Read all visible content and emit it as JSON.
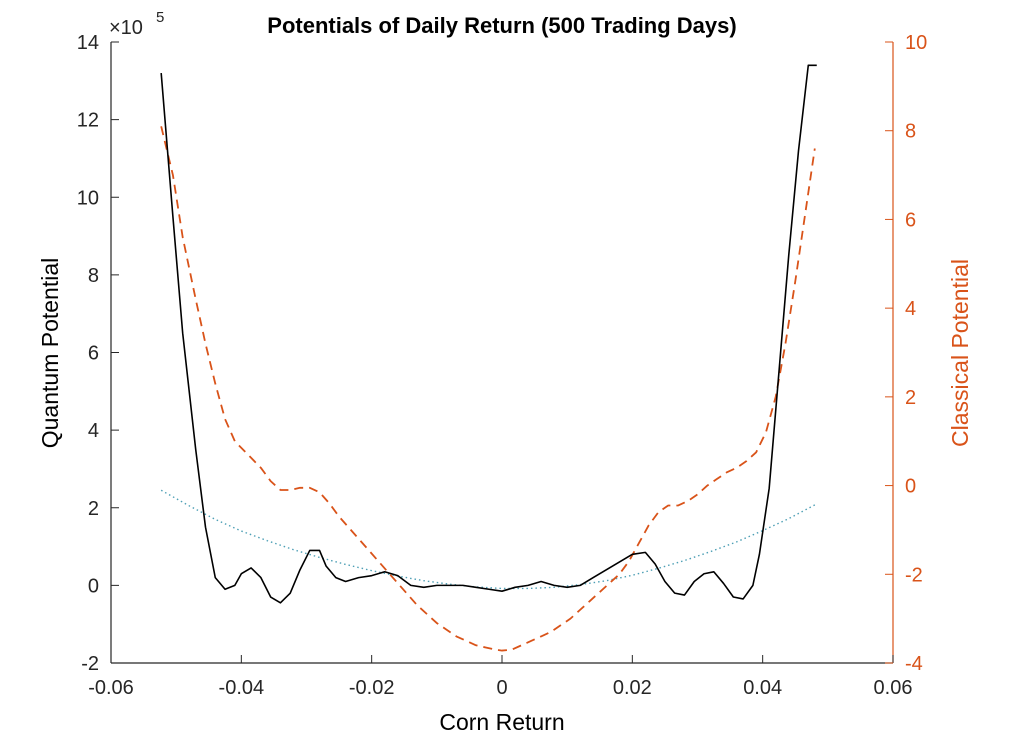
{
  "chart_data": {
    "type": "line",
    "title": "Potentials of Daily Return (500 Trading Days)",
    "xlabel": "Corn Return",
    "ylabel_left": "Quantum Potential",
    "ylabel_right": "Classical Potential",
    "exponent_label": "×10",
    "exponent_power": "5",
    "xlim": [
      -0.06,
      0.06
    ],
    "ylim_left": [
      -2,
      14
    ],
    "ylim_right": [
      -4,
      10
    ],
    "xticks": [
      -0.06,
      -0.04,
      -0.02,
      0,
      0.02,
      0.04,
      0.06
    ],
    "xtick_labels": [
      "-0.06",
      "-0.04",
      "-0.02",
      "0",
      "0.02",
      "0.04",
      "0.06"
    ],
    "yticks_left": [
      -2,
      0,
      2,
      4,
      6,
      8,
      10,
      12,
      14
    ],
    "ytick_labels_left": [
      "-2",
      "0",
      "2",
      "4",
      "6",
      "8",
      "10",
      "12",
      "14"
    ],
    "yticks_right": [
      -4,
      -2,
      0,
      2,
      4,
      6,
      8,
      10
    ],
    "ytick_labels_right": [
      "-4",
      "-2",
      "0",
      "2",
      "4",
      "6",
      "8",
      "10"
    ],
    "grid": false,
    "colors": {
      "quantum": "#000000",
      "classical": "#d95319",
      "fit": "#4d9fb5",
      "right_axis": "#d95319",
      "axes": "#262626"
    },
    "series": [
      {
        "axis": "left",
        "style": "solid",
        "x": [
          -0.0523,
          -0.0505,
          -0.049,
          -0.047,
          -0.0455,
          -0.044,
          -0.0425,
          -0.041,
          -0.04,
          -0.0385,
          -0.037,
          -0.0355,
          -0.034,
          -0.0325,
          -0.031,
          -0.0295,
          -0.028,
          -0.027,
          -0.0255,
          -0.024,
          -0.022,
          -0.02,
          -0.018,
          -0.016,
          -0.014,
          -0.012,
          -0.01,
          -0.008,
          -0.006,
          -0.004,
          -0.002,
          0,
          0.002,
          0.004,
          0.006,
          0.008,
          0.01,
          0.012,
          0.014,
          0.016,
          0.018,
          0.02,
          0.022,
          0.0235,
          0.025,
          0.0265,
          0.028,
          0.0295,
          0.031,
          0.0325,
          0.034,
          0.0355,
          0.037,
          0.0385,
          0.0395,
          0.041,
          0.0425,
          0.044,
          0.0455,
          0.047,
          0.0483
        ],
        "values": [
          13.2,
          9.5,
          6.5,
          3.5,
          1.5,
          0.2,
          -0.1,
          0.0,
          0.3,
          0.45,
          0.2,
          -0.3,
          -0.45,
          -0.2,
          0.4,
          0.9,
          0.9,
          0.5,
          0.2,
          0.1,
          0.2,
          0.25,
          0.35,
          0.25,
          0.0,
          -0.05,
          0.0,
          0.0,
          0.0,
          -0.05,
          -0.1,
          -0.15,
          -0.05,
          0.0,
          0.1,
          0.0,
          -0.05,
          0.0,
          0.2,
          0.4,
          0.6,
          0.8,
          0.85,
          0.55,
          0.1,
          -0.2,
          -0.25,
          0.1,
          0.3,
          0.35,
          0.05,
          -0.3,
          -0.35,
          0.0,
          0.8,
          2.5,
          5.5,
          8.5,
          11.2,
          13.4,
          13.4
        ]
      },
      {
        "axis": "right",
        "style": "dashed",
        "x": [
          -0.0523,
          -0.0505,
          -0.049,
          -0.047,
          -0.0455,
          -0.044,
          -0.0425,
          -0.041,
          -0.039,
          -0.037,
          -0.0355,
          -0.034,
          -0.0325,
          -0.031,
          -0.0295,
          -0.028,
          -0.0265,
          -0.025,
          -0.0235,
          -0.022,
          -0.0205,
          -0.019,
          -0.0175,
          -0.016,
          -0.0145,
          -0.013,
          -0.0115,
          -0.01,
          -0.0085,
          -0.007,
          -0.0055,
          -0.004,
          -0.0025,
          -0.001,
          0,
          0.0015,
          0.003,
          0.0045,
          0.006,
          0.0075,
          0.009,
          0.0105,
          0.012,
          0.0135,
          0.015,
          0.0165,
          0.018,
          0.0195,
          0.021,
          0.0225,
          0.024,
          0.0255,
          0.027,
          0.0285,
          0.03,
          0.0315,
          0.033,
          0.0345,
          0.036,
          0.0375,
          0.039,
          0.0405,
          0.042,
          0.0435,
          0.045,
          0.0465,
          0.048
        ],
        "values": [
          8.1,
          7.0,
          5.6,
          4.2,
          3.2,
          2.3,
          1.5,
          1.0,
          0.7,
          0.4,
          0.1,
          -0.1,
          -0.1,
          -0.05,
          -0.05,
          -0.15,
          -0.4,
          -0.7,
          -0.95,
          -1.2,
          -1.45,
          -1.7,
          -1.95,
          -2.2,
          -2.45,
          -2.7,
          -2.9,
          -3.1,
          -3.25,
          -3.4,
          -3.5,
          -3.6,
          -3.65,
          -3.7,
          -3.72,
          -3.7,
          -3.6,
          -3.5,
          -3.4,
          -3.3,
          -3.15,
          -3.0,
          -2.8,
          -2.6,
          -2.4,
          -2.2,
          -2.0,
          -1.7,
          -1.3,
          -0.9,
          -0.6,
          -0.45,
          -0.45,
          -0.35,
          -0.2,
          0.0,
          0.15,
          0.3,
          0.4,
          0.55,
          0.75,
          1.2,
          2.0,
          3.2,
          4.6,
          6.1,
          7.6
        ]
      },
      {
        "axis": "left",
        "style": "dotted",
        "x": [
          -0.0523,
          -0.048,
          -0.044,
          -0.04,
          -0.036,
          -0.032,
          -0.028,
          -0.024,
          -0.02,
          -0.016,
          -0.012,
          -0.008,
          -0.004,
          0,
          0.004,
          0.008,
          0.012,
          0.016,
          0.02,
          0.024,
          0.028,
          0.032,
          0.036,
          0.04,
          0.044,
          0.0483
        ],
        "values": [
          2.45,
          2.05,
          1.7,
          1.4,
          1.15,
          0.92,
          0.72,
          0.54,
          0.38,
          0.24,
          0.12,
          0.03,
          -0.04,
          -0.08,
          -0.08,
          -0.05,
          0.02,
          0.12,
          0.26,
          0.44,
          0.64,
          0.87,
          1.12,
          1.41,
          1.72,
          2.1
        ]
      }
    ]
  }
}
